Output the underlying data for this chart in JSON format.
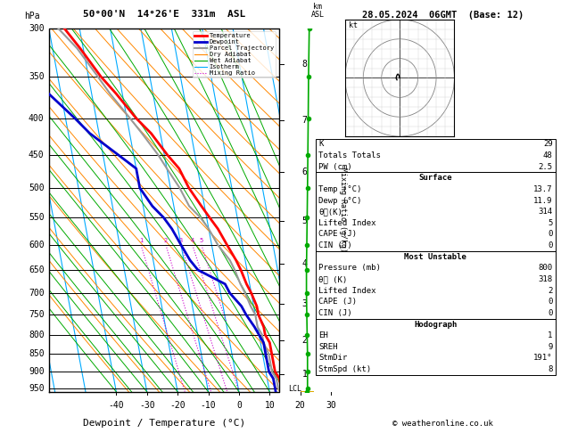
{
  "title_left": "50°00'N  14°26'E  331m  ASL",
  "title_right": "28.05.2024  06GMT  (Base: 12)",
  "xlabel": "Dewpoint / Temperature (°C)",
  "x_min": -40,
  "x_max": 35,
  "p_levels": [
    300,
    350,
    400,
    450,
    500,
    550,
    600,
    650,
    700,
    750,
    800,
    850,
    900,
    950
  ],
  "p_min": 300,
  "p_max": 960,
  "isotherm_color": "#00aaff",
  "dry_adiabat_color": "#ff8800",
  "wet_adiabat_color": "#00aa00",
  "mixing_ratio_color": "#cc00cc",
  "temp_color": "#ff0000",
  "dewp_color": "#0000cc",
  "parcel_color": "#999999",
  "legend_items": [
    {
      "label": "Temperature",
      "color": "#ff0000",
      "lw": 2.0,
      "ls": "-"
    },
    {
      "label": "Dewpoint",
      "color": "#0000cc",
      "lw": 2.0,
      "ls": "-"
    },
    {
      "label": "Parcel Trajectory",
      "color": "#999999",
      "lw": 1.5,
      "ls": "-"
    },
    {
      "label": "Dry Adiabat",
      "color": "#ff8800",
      "lw": 0.8,
      "ls": "-"
    },
    {
      "label": "Wet Adiabat",
      "color": "#00aa00",
      "lw": 0.8,
      "ls": "-"
    },
    {
      "label": "Isotherm",
      "color": "#00aaff",
      "lw": 0.8,
      "ls": "-"
    },
    {
      "label": "Mixing Ratio",
      "color": "#cc00cc",
      "lw": 0.8,
      "ls": ":"
    }
  ],
  "km_ticks": [
    1,
    2,
    3,
    4,
    5,
    6,
    7,
    8
  ],
  "km_pressures": [
    908,
    814,
    724,
    637,
    555,
    475,
    403,
    337
  ],
  "lcl_pressure": 952,
  "skew_factor": 22,
  "stats": {
    "K": 29,
    "Totals Totals": 48,
    "PW (cm)": 2.5,
    "Surface Temp (C)": 13.7,
    "Surface Dewp (C)": 11.9,
    "Surface the(K)": 314,
    "Surface Lifted Index": 5,
    "Surface CAPE (J)": 0,
    "Surface CIN (J)": 0,
    "MU Pressure (mb)": 800,
    "MU the (K)": 318,
    "MU Lifted Index": 2,
    "MU CAPE (J)": 0,
    "MU CIN (J)": 0,
    "Hodo EH": 1,
    "Hodo SREH": 9,
    "Hodo StmDir": "191°",
    "Hodo StmSpd (kt)": 8
  },
  "temp_profile_p": [
    300,
    320,
    350,
    370,
    400,
    420,
    450,
    470,
    500,
    530,
    550,
    570,
    600,
    630,
    650,
    680,
    700,
    730,
    750,
    780,
    800,
    820,
    850,
    870,
    900,
    920,
    950,
    960
  ],
  "temp_profile_T": [
    -35,
    -31,
    -26,
    -22,
    -17,
    -13,
    -9,
    -6,
    -4,
    -1,
    1,
    3,
    5,
    7,
    8,
    9,
    10,
    11,
    11,
    12,
    12,
    13,
    13,
    13,
    13,
    14,
    14,
    14
  ],
  "dewp_profile_p": [
    300,
    320,
    350,
    370,
    400,
    420,
    450,
    470,
    500,
    530,
    550,
    570,
    600,
    630,
    650,
    680,
    700,
    730,
    750,
    780,
    800,
    820,
    850,
    870,
    900,
    920,
    950,
    960
  ],
  "dewp_profile_T": [
    -55,
    -52,
    -48,
    -44,
    -37,
    -33,
    -25,
    -20,
    -20,
    -17,
    -14,
    -12,
    -10,
    -8,
    -6,
    2,
    3,
    6,
    7,
    9,
    10,
    11,
    11,
    11,
    11,
    12,
    12,
    12
  ],
  "parcel_profile_p": [
    960,
    950,
    920,
    900,
    870,
    850,
    820,
    800,
    780,
    750,
    730,
    700,
    680,
    650,
    630,
    600,
    570,
    550,
    530,
    500,
    470,
    450,
    420,
    400,
    370,
    350,
    320,
    300
  ],
  "parcel_profile_T": [
    14,
    13,
    13,
    12,
    12,
    12,
    11,
    11,
    10,
    10,
    9,
    8,
    7,
    6,
    5,
    2,
    0,
    -2,
    -5,
    -7,
    -10,
    -12,
    -16,
    -19,
    -24,
    -27,
    -32,
    -37
  ],
  "wind_profile_p": [
    300,
    350,
    400,
    450,
    500,
    550,
    600,
    650,
    700,
    750,
    800,
    850,
    900,
    950,
    960
  ],
  "wind_profile_x": [
    0.3,
    0.2,
    0.15,
    0.1,
    0.05,
    0.0,
    -0.05,
    -0.1,
    -0.1,
    -0.05,
    0.0,
    0.05,
    0.05,
    0.05,
    0.0
  ],
  "footer": "© weatheronline.co.uk"
}
